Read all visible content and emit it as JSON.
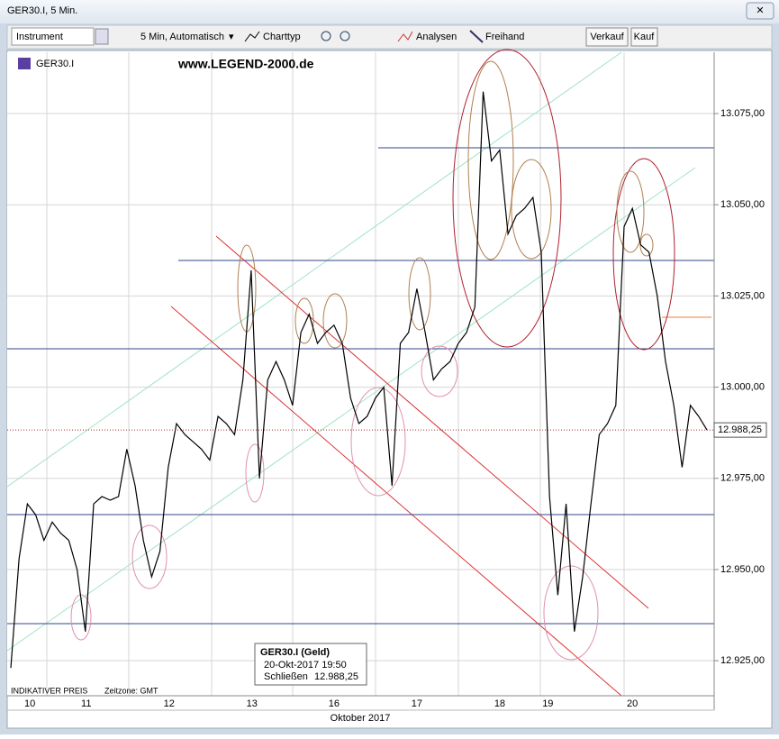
{
  "window": {
    "title": "GER30.I, 5 Min."
  },
  "toolbar": {
    "instrument": "Instrument",
    "interval": "5 Min,  Automatisch",
    "chart_type": "Charttyp",
    "analyses": "Analysen",
    "freehand": "Freihand",
    "sell": "Verkauf",
    "buy": "Kauf"
  },
  "chart_data": {
    "type": "line",
    "symbol": "GER30.I",
    "watermark": "www.LEGEND-2000.de",
    "footer_note": "INDIKATIVER PREIS",
    "timezone": "Zeitzone: GMT",
    "x_axis_label": "Oktober 2017",
    "color": "#000000",
    "values": [
      12923,
      12953,
      12968,
      12965,
      12958,
      12963,
      12960,
      12958,
      12950,
      12933,
      12968,
      12970,
      12969,
      12970,
      12983,
      12973,
      12958,
      12948,
      12955,
      12978,
      12990,
      12987,
      12985,
      12983,
      12980,
      12992,
      12990,
      12987,
      13002,
      13032,
      12975,
      13002,
      13007,
      13002,
      12995,
      13015,
      13020,
      13012,
      13015,
      13017,
      13012,
      12997,
      12990,
      12992,
      12997,
      13000,
      12973,
      13012,
      13015,
      13027,
      13015,
      13002,
      13005,
      13007,
      13012,
      13015,
      13022,
      13081,
      13062,
      13065,
      13042,
      13047,
      13049,
      13052,
      13037,
      12970,
      12943,
      12968,
      12933,
      12948,
      12968,
      12987,
      12990,
      12995,
      13044,
      13049,
      13039,
      13037,
      13025,
      13007,
      12995,
      12978,
      12995,
      12992,
      12988.25
    ],
    "xlim": [
      0,
      84
    ],
    "xticks": [
      {
        "value": 2.3,
        "label": "10"
      },
      {
        "value": 9.1,
        "label": "11"
      },
      {
        "value": 19.1,
        "label": "12"
      },
      {
        "value": 29.1,
        "label": "13"
      },
      {
        "value": 39,
        "label": "16"
      },
      {
        "value": 49,
        "label": "17"
      },
      {
        "value": 59,
        "label": "18"
      },
      {
        "value": 64.8,
        "label": "19"
      },
      {
        "value": 75,
        "label": "20"
      }
    ],
    "ylim": [
      12915.4,
      13091.8
    ],
    "yticks": [
      {
        "value": 12925,
        "label": "12.925,00"
      },
      {
        "value": 12950,
        "label": "12.950,00"
      },
      {
        "value": 12975,
        "label": "12.975,00"
      },
      {
        "value": 13000,
        "label": "13.000,00"
      },
      {
        "value": 13025,
        "label": "13.025,00"
      },
      {
        "value": 13050,
        "label": "13.050,00"
      },
      {
        "value": 13075,
        "label": "13.075,00"
      }
    ],
    "grid": true,
    "last_value": 12988.25,
    "last_value_label": "12.988,25",
    "tooltip": {
      "title": "GER30.I (Geld)",
      "date": "20-Okt-2017 19:50",
      "close_label": "Schließen",
      "close_value": "12.988,25"
    }
  }
}
